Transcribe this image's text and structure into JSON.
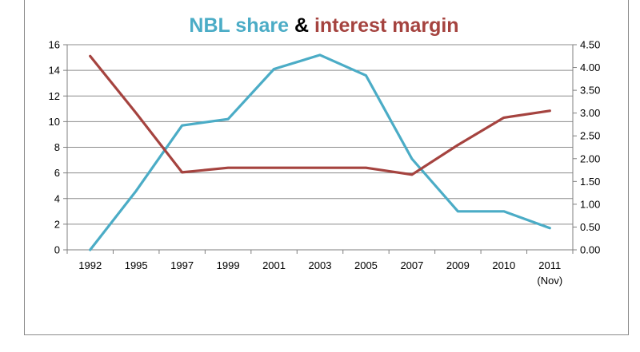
{
  "chart_data": {
    "type": "line",
    "title_parts": [
      {
        "text": "NBL share",
        "color": "#4bacc6"
      },
      {
        "text": " & ",
        "color": "#000000"
      },
      {
        "text": "interest margin",
        "color": "#a5433f"
      }
    ],
    "categories": [
      "1992",
      "1995",
      "1997",
      "1999",
      "2001",
      "2003",
      "2005",
      "2007",
      "2009",
      "2010",
      "2011"
    ],
    "category_sublabels": [
      "",
      "",
      "",
      "",
      "",
      "",
      "",
      "",
      "",
      "",
      "(Nov)"
    ],
    "series": [
      {
        "axis": "left",
        "color": "#4bacc6",
        "values": [
          0,
          4.6,
          9.7,
          10.2,
          14.1,
          15.2,
          13.6,
          7.1,
          3.0,
          3.0,
          1.7
        ]
      },
      {
        "axis": "right",
        "color": "#a5433f",
        "values": [
          4.25,
          3.0,
          1.7,
          1.8,
          1.8,
          1.8,
          1.8,
          1.65,
          2.3,
          2.9,
          3.05
        ]
      }
    ],
    "y_left": {
      "min": 0,
      "max": 16,
      "step": 2,
      "ticks": [
        "0",
        "2",
        "4",
        "6",
        "8",
        "10",
        "12",
        "14",
        "16"
      ]
    },
    "y_right": {
      "min": 0,
      "max": 4.5,
      "step": 0.5,
      "ticks": [
        "0.00",
        "0.50",
        "1.00",
        "1.50",
        "2.00",
        "2.50",
        "3.00",
        "3.50",
        "4.00",
        "4.50"
      ]
    },
    "grid": true,
    "legend": "none"
  }
}
